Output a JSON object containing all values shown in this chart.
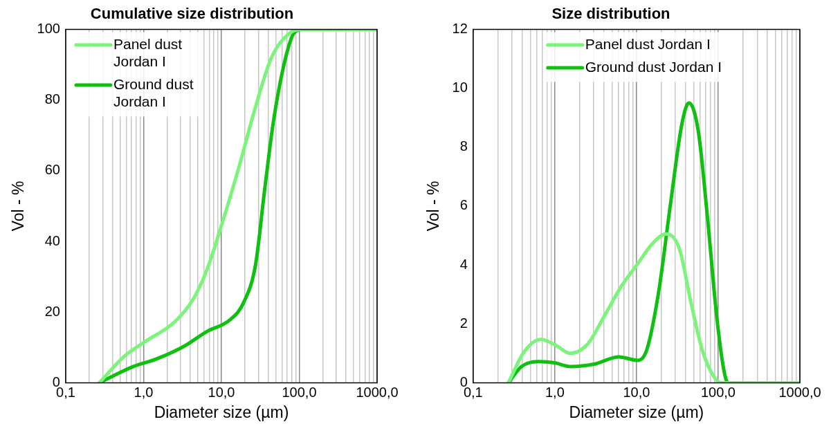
{
  "chart_data": [
    {
      "type": "line",
      "title": "Cumulative size distribution",
      "xlabel": "Diameter size (µm)",
      "ylabel": "Vol - %",
      "log": "x",
      "grid": "x",
      "legend": "top left",
      "marker": "none",
      "line_style": "solid",
      "xlim": [
        0.1,
        1000
      ],
      "xticks": [
        {
          "value": 0.1,
          "label": "0,1"
        },
        {
          "value": 0.2,
          "label": null
        },
        {
          "value": 0.3,
          "label": null
        },
        {
          "value": 0.4,
          "label": null
        },
        {
          "value": 0.5,
          "label": null
        },
        {
          "value": 0.6,
          "label": null
        },
        {
          "value": 0.7,
          "label": null
        },
        {
          "value": 0.8,
          "label": null
        },
        {
          "value": 0.9,
          "label": null
        },
        {
          "value": 1,
          "label": "1,0"
        },
        {
          "value": 2,
          "label": null
        },
        {
          "value": 3,
          "label": null
        },
        {
          "value": 4,
          "label": null
        },
        {
          "value": 5,
          "label": null
        },
        {
          "value": 6,
          "label": null
        },
        {
          "value": 7,
          "label": null
        },
        {
          "value": 8,
          "label": null
        },
        {
          "value": 9,
          "label": null
        },
        {
          "value": 10,
          "label": "10,0"
        },
        {
          "value": 20,
          "label": null
        },
        {
          "value": 30,
          "label": null
        },
        {
          "value": 40,
          "label": null
        },
        {
          "value": 50,
          "label": null
        },
        {
          "value": 60,
          "label": null
        },
        {
          "value": 70,
          "label": null
        },
        {
          "value": 80,
          "label": null
        },
        {
          "value": 90,
          "label": null
        },
        {
          "value": 100,
          "label": "100,0"
        },
        {
          "value": 200,
          "label": null
        },
        {
          "value": 300,
          "label": null
        },
        {
          "value": 400,
          "label": null
        },
        {
          "value": 500,
          "label": null
        },
        {
          "value": 600,
          "label": null
        },
        {
          "value": 700,
          "label": null
        },
        {
          "value": 800,
          "label": null
        },
        {
          "value": 900,
          "label": null
        },
        {
          "value": 1000,
          "label": "1000,0"
        }
      ],
      "ylim": [
        0,
        100
      ],
      "yticks": [
        0,
        20,
        40,
        60,
        80,
        100
      ],
      "series": [
        {
          "name": "Panel dust Jordan I",
          "color": "#7cf47c",
          "x": [
            0.27,
            0.56,
            1.04,
            2.5,
            4.3,
            6.5,
            9.8,
            16.9,
            27.4,
            44,
            76,
            106,
            1000
          ],
          "values": [
            0,
            7.4,
            11.6,
            17.2,
            23.5,
            31.9,
            43.8,
            61.2,
            78,
            92,
            99,
            100,
            100
          ]
        },
        {
          "name": "Ground dust Jordan I",
          "color": "#10c010",
          "x": [
            0.27,
            0.74,
            1.45,
            3.3,
            6.5,
            12.9,
            19.4,
            27.4,
            35.8,
            46.5,
            65.7,
            86,
            114,
            1000
          ],
          "values": [
            0,
            4.6,
            6.7,
            10.3,
            14.5,
            17.8,
            22.8,
            33.3,
            54.3,
            73.8,
            91.3,
            99,
            100,
            100
          ]
        }
      ]
    },
    {
      "type": "line",
      "title": "Size distribution",
      "xlabel": "Diameter size (µm)",
      "ylabel": "Vol - %",
      "log": "x",
      "grid": "x",
      "legend": "top",
      "marker": "none",
      "line_style": "solid",
      "xlim": [
        0.1,
        1000
      ],
      "xticks": [
        {
          "value": 0.1,
          "label": "0,1"
        },
        {
          "value": 0.2,
          "label": null
        },
        {
          "value": 0.3,
          "label": null
        },
        {
          "value": 0.4,
          "label": null
        },
        {
          "value": 0.5,
          "label": null
        },
        {
          "value": 0.6,
          "label": null
        },
        {
          "value": 0.7,
          "label": null
        },
        {
          "value": 0.8,
          "label": null
        },
        {
          "value": 0.9,
          "label": null
        },
        {
          "value": 1,
          "label": "1,0"
        },
        {
          "value": 2,
          "label": null
        },
        {
          "value": 3,
          "label": null
        },
        {
          "value": 4,
          "label": null
        },
        {
          "value": 5,
          "label": null
        },
        {
          "value": 6,
          "label": null
        },
        {
          "value": 7,
          "label": null
        },
        {
          "value": 8,
          "label": null
        },
        {
          "value": 9,
          "label": null
        },
        {
          "value": 10,
          "label": "10,0"
        },
        {
          "value": 20,
          "label": null
        },
        {
          "value": 30,
          "label": null
        },
        {
          "value": 40,
          "label": null
        },
        {
          "value": 50,
          "label": null
        },
        {
          "value": 60,
          "label": null
        },
        {
          "value": 70,
          "label": null
        },
        {
          "value": 80,
          "label": null
        },
        {
          "value": 90,
          "label": null
        },
        {
          "value": 100,
          "label": "100,0"
        },
        {
          "value": 200,
          "label": null
        },
        {
          "value": 300,
          "label": null
        },
        {
          "value": 400,
          "label": null
        },
        {
          "value": 500,
          "label": null
        },
        {
          "value": 600,
          "label": null
        },
        {
          "value": 700,
          "label": null
        },
        {
          "value": 800,
          "label": null
        },
        {
          "value": 900,
          "label": null
        },
        {
          "value": 1000,
          "label": "1000,0"
        }
      ],
      "ylim": [
        0,
        12
      ],
      "yticks": [
        0,
        2,
        4,
        6,
        8,
        10,
        12
      ],
      "series": [
        {
          "name": "Panel dust Jordan I",
          "color": "#7cf47c",
          "x": [
            0.27,
            0.42,
            0.67,
            0.99,
            1.55,
            2.5,
            4.1,
            6.6,
            10.4,
            15.4,
            22.9,
            33.5,
            46.6,
            64,
            89,
            109,
            1000
          ],
          "values": [
            0,
            1.05,
            1.47,
            1.3,
            1.0,
            1.3,
            2.3,
            3.3,
            4.05,
            4.7,
            5.05,
            4.55,
            2.7,
            1.1,
            0.2,
            0,
            0
          ]
        },
        {
          "name": "Ground dust Jordan I",
          "color": "#10c010",
          "x": [
            0.27,
            0.39,
            0.63,
            0.99,
            1.55,
            3.0,
            6.1,
            10.4,
            13.4,
            18.7,
            26,
            36,
            43.8,
            57,
            74,
            95.5,
            117,
            132,
            1000
          ],
          "values": [
            0,
            0.55,
            0.72,
            0.68,
            0.55,
            0.63,
            0.88,
            0.76,
            1.13,
            3.1,
            6.05,
            8.8,
            9.5,
            8.55,
            5.6,
            2.3,
            0.45,
            0,
            0
          ]
        }
      ]
    }
  ]
}
